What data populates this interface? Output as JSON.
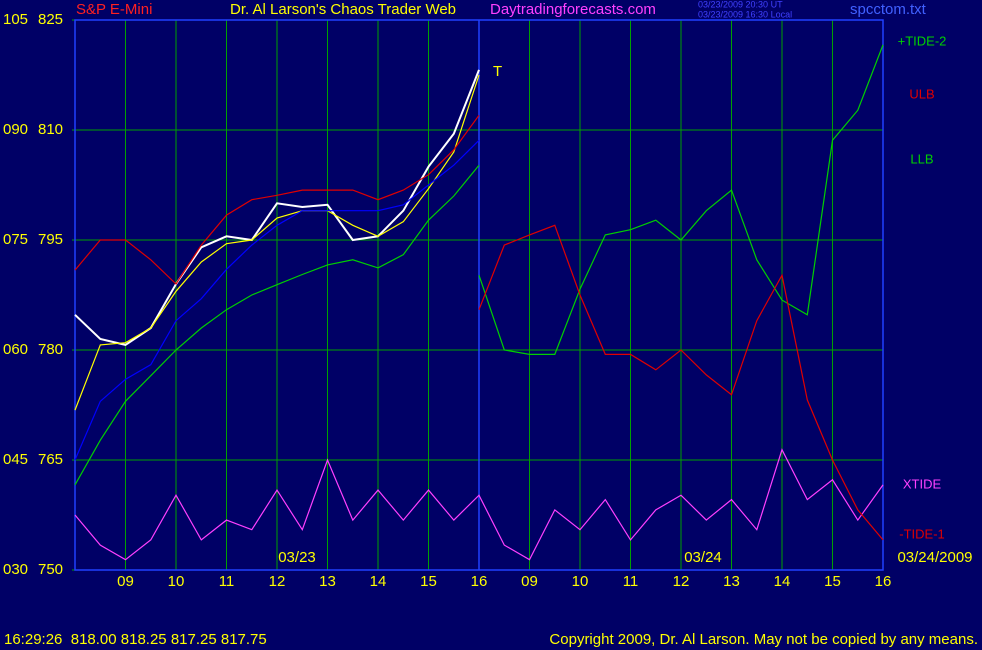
{
  "chart_data": {
    "type": "line",
    "title": "Dr. Al Larson's Chaos Trader Web",
    "subtitle": "S&P E-Mini",
    "source": "Daytradingforecasts.com",
    "file": "spcctom.txt",
    "timestamps": [
      "03/23/2009 20:30 UT",
      "03/23/2009 16:30 Local"
    ],
    "date_labels": [
      "03/23",
      "03/24",
      "03/24/2009"
    ],
    "marker": "T",
    "x": [
      0,
      0.5,
      1,
      1.5,
      2,
      2.5,
      3,
      3.5,
      4,
      4.5,
      5,
      5.5,
      6,
      6.5,
      7,
      7.5,
      8,
      8.5,
      9,
      9.5,
      10,
      10.5,
      11,
      11.5,
      12,
      12.5,
      13,
      13.5,
      14,
      14.5,
      15,
      15.5,
      16
    ],
    "xlim": [
      0,
      16
    ],
    "xticks": [
      {
        "value": 1,
        "label": "09"
      },
      {
        "value": 2,
        "label": "10"
      },
      {
        "value": 3,
        "label": "11"
      },
      {
        "value": 4,
        "label": "12"
      },
      {
        "value": 5,
        "label": "13"
      },
      {
        "value": 6,
        "label": "14"
      },
      {
        "value": 7,
        "label": "15"
      },
      {
        "value": 8,
        "label": "16"
      },
      {
        "value": 9,
        "label": "09"
      },
      {
        "value": 10,
        "label": "10"
      },
      {
        "value": 11,
        "label": "11"
      },
      {
        "value": 12,
        "label": "12"
      },
      {
        "value": 13,
        "label": "13"
      },
      {
        "value": 14,
        "label": "14"
      },
      {
        "value": 15,
        "label": "15"
      },
      {
        "value": 16,
        "label": "16"
      }
    ],
    "ylim": [
      750,
      825
    ],
    "yticks": [
      750,
      765,
      780,
      795,
      810,
      825
    ],
    "y2lim": [
      30,
      105
    ],
    "y2ticks": [
      {
        "value": 30,
        "label": "030"
      },
      {
        "value": 45,
        "label": "045"
      },
      {
        "value": 60,
        "label": "060"
      },
      {
        "value": 75,
        "label": "075"
      },
      {
        "value": 90,
        "label": "090"
      },
      {
        "value": 105,
        "label": "105"
      }
    ],
    "grid": true,
    "series": [
      {
        "color": "#ffffff",
        "values": [
          784.8,
          781.5,
          780.7,
          783,
          789,
          794,
          795.5,
          795,
          800,
          799.5,
          799.8,
          795,
          795.5,
          799,
          805,
          809.5,
          818.2,
          null,
          null,
          null,
          null,
          null,
          null,
          null,
          null,
          null,
          null,
          null,
          null,
          null,
          null,
          null,
          null
        ]
      },
      {
        "color": "#ffff00",
        "values": [
          771.8,
          780.7,
          781,
          783,
          788,
          792,
          794.5,
          795,
          798,
          799,
          799,
          797,
          795.5,
          797.5,
          802,
          807,
          817.5,
          null,
          null,
          null,
          null,
          null,
          null,
          null,
          null,
          null,
          null,
          null,
          null,
          null,
          null,
          null,
          null
        ]
      },
      {
        "color": "#0000ff",
        "values": [
          765,
          773,
          776,
          778,
          784,
          787,
          791,
          794.3,
          797,
          799,
          799,
          799,
          799,
          799.8,
          802.5,
          805.2,
          808.6,
          null,
          null,
          null,
          null,
          null,
          null,
          null,
          null,
          null,
          null,
          null,
          null,
          null,
          null,
          null,
          null
        ]
      },
      {
        "name": "ULB",
        "color": "#e00000",
        "values": [
          790.9,
          795,
          795,
          792.3,
          789,
          794.3,
          798.4,
          800.5,
          801.1,
          801.8,
          801.8,
          801.8,
          800.5,
          801.8,
          803.9,
          807.3,
          812,
          null,
          null,
          null,
          null,
          null,
          null,
          null,
          null,
          null,
          null,
          null,
          null,
          null,
          null,
          null,
          null
        ]
      },
      {
        "name": "LLB",
        "color": "#00d000",
        "values": [
          761.6,
          767.7,
          773,
          776.5,
          780,
          783,
          785.5,
          787.5,
          788.9,
          790.3,
          791.6,
          792.3,
          791.2,
          793,
          797.7,
          801,
          805.2,
          null,
          null,
          null,
          null,
          null,
          null,
          null,
          null,
          null,
          null,
          null,
          null,
          null,
          null,
          null,
          null
        ]
      },
      {
        "name": "+TIDE-2",
        "color": "#00d000",
        "values": [
          null,
          null,
          null,
          null,
          null,
          null,
          null,
          null,
          null,
          null,
          null,
          null,
          null,
          null,
          null,
          null,
          790.2,
          780,
          779.4,
          779.4,
          788.3,
          795.7,
          796.4,
          797.7,
          795,
          799,
          801.8,
          792.3,
          786.8,
          784.8,
          808.6,
          812.7,
          821.6
        ]
      },
      {
        "name": "XTIDE",
        "color": "#ff40ff",
        "values": [
          757.5,
          753.4,
          751.4,
          754.1,
          760.2,
          754.1,
          756.8,
          755.5,
          760.9,
          755.5,
          765,
          756.8,
          760.9,
          756.8,
          760.9,
          756.8,
          760.2,
          753.4,
          751.4,
          758.2,
          755.5,
          759.6,
          754.1,
          758.2,
          760.2,
          756.8,
          759.6,
          755.5,
          766.4,
          759.6,
          762.3,
          756.8,
          761.6
        ]
      },
      {
        "name": "-TIDE-1",
        "color": "#e00000",
        "values": [
          null,
          null,
          null,
          null,
          null,
          null,
          null,
          null,
          null,
          null,
          null,
          null,
          null,
          null,
          null,
          null,
          785.5,
          794.3,
          795.7,
          797,
          787.5,
          779.4,
          779.4,
          777.3,
          780,
          776.6,
          773.9,
          784,
          790.2,
          773.2,
          765,
          758.2,
          754.1
        ]
      }
    ]
  },
  "status_bar": {
    "quote": "16:29:26  818.00 818.25 817.25 817.75",
    "copyright": "Copyright 2009, Dr. Al Larson. May not be copied by any means."
  }
}
